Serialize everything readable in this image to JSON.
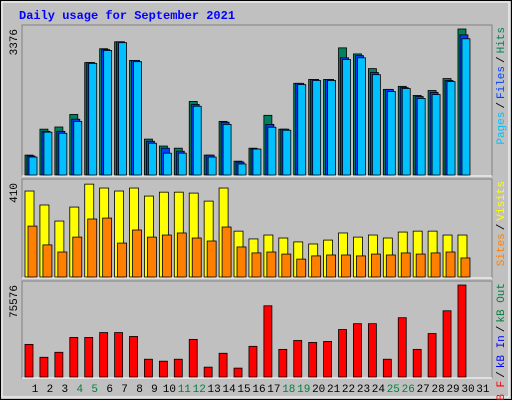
{
  "chart_data": {
    "type": "bar",
    "title": "Daily usage for September 2021",
    "categories": [
      "1",
      "2",
      "3",
      "4",
      "5",
      "6",
      "7",
      "8",
      "9",
      "10",
      "11",
      "12",
      "13",
      "14",
      "15",
      "16",
      "17",
      "18",
      "19",
      "20",
      "21",
      "22",
      "23",
      "24",
      "25",
      "26",
      "27",
      "28",
      "29",
      "30",
      "31"
    ],
    "weekend_indices": [
      3,
      4,
      10,
      11,
      17,
      18,
      24,
      25
    ],
    "weekend_color": "#008040",
    "legend_separator": "/",
    "panels": [
      {
        "ylim": [
          0,
          3376
        ],
        "yticks": [
          3376
        ],
        "series": [
          {
            "name": "Pages",
            "color": "#00C0FF",
            "values": [
              415,
              990,
              965,
              1240,
              2580,
              2880,
              3060,
              2620,
              735,
              505,
              505,
              1590,
              415,
              1170,
              255,
              600,
              1105,
              1035,
              2090,
              2185,
              2185,
              2670,
              2710,
              2320,
              1930,
              2000,
              1770,
              1860,
              2160,
              3150,
              null
            ]
          },
          {
            "name": "Files",
            "color": "#0040FF",
            "values": [
              440,
              1010,
              1010,
              1290,
              2600,
              2900,
              3080,
              2650,
              780,
              620,
              550,
              1630,
              460,
              1220,
              300,
              600,
              1170,
              1060,
              2120,
              2210,
              2210,
              2710,
              2760,
              2370,
              1980,
              2020,
              1815,
              1910,
              2185,
              3240,
              null
            ]
          },
          {
            "name": "Hits",
            "color": "#00805C",
            "values": [
              460,
              1060,
              1110,
              1400,
              2600,
              2920,
              3080,
              2650,
              830,
              670,
              620,
              1700,
              460,
              1240,
              320,
              620,
              1380,
              1060,
              2120,
              2210,
              2210,
              2940,
              2800,
              2460,
              1980,
              2050,
              1840,
              1955,
              2230,
              3376,
              null
            ]
          }
        ]
      },
      {
        "ylim": [
          0,
          410
        ],
        "yticks": [
          410
        ],
        "series": [
          {
            "name": "Sites",
            "color": "#FF8000",
            "values": [
              222,
              140,
              109,
              174,
              253,
              257,
              148,
              205,
              174,
              183,
              192,
              170,
              157,
              218,
              131,
              105,
              109,
              100,
              78,
              92,
              96,
              96,
              92,
              100,
              96,
              105,
              100,
              105,
              109,
              83,
              null
            ]
          },
          {
            "name": "Visits",
            "color": "#FFFF00",
            "values": [
              375,
              314,
              244,
              305,
              405,
              388,
              375,
              388,
              353,
              370,
              370,
              366,
              331,
              388,
              200,
              166,
              183,
              170,
              153,
              144,
              161,
              192,
              174,
              183,
              170,
              196,
              200,
              200,
              183,
              183,
              null
            ]
          }
        ]
      },
      {
        "ylim": [
          0,
          75576
        ],
        "yticks": [
          75576
        ],
        "series": [
          {
            "name": "kB F",
            "color": "#FF0000",
            "values": [
              26800,
              16200,
              20300,
              32500,
              32500,
              36500,
              36500,
              33300,
              14600,
              13000,
              14600,
              30900,
              8100,
              19500,
              7300,
              25200,
              58500,
              22700,
              30000,
              28400,
              29200,
              39000,
              43800,
              43800,
              14600,
              48700,
              22700,
              35700,
              54400,
              75576,
              null
            ]
          }
        ],
        "other_legend": [
          {
            "name": "kB In",
            "color": "#0000FF"
          },
          {
            "name": "kB Out",
            "color": "#008040"
          }
        ]
      }
    ]
  }
}
